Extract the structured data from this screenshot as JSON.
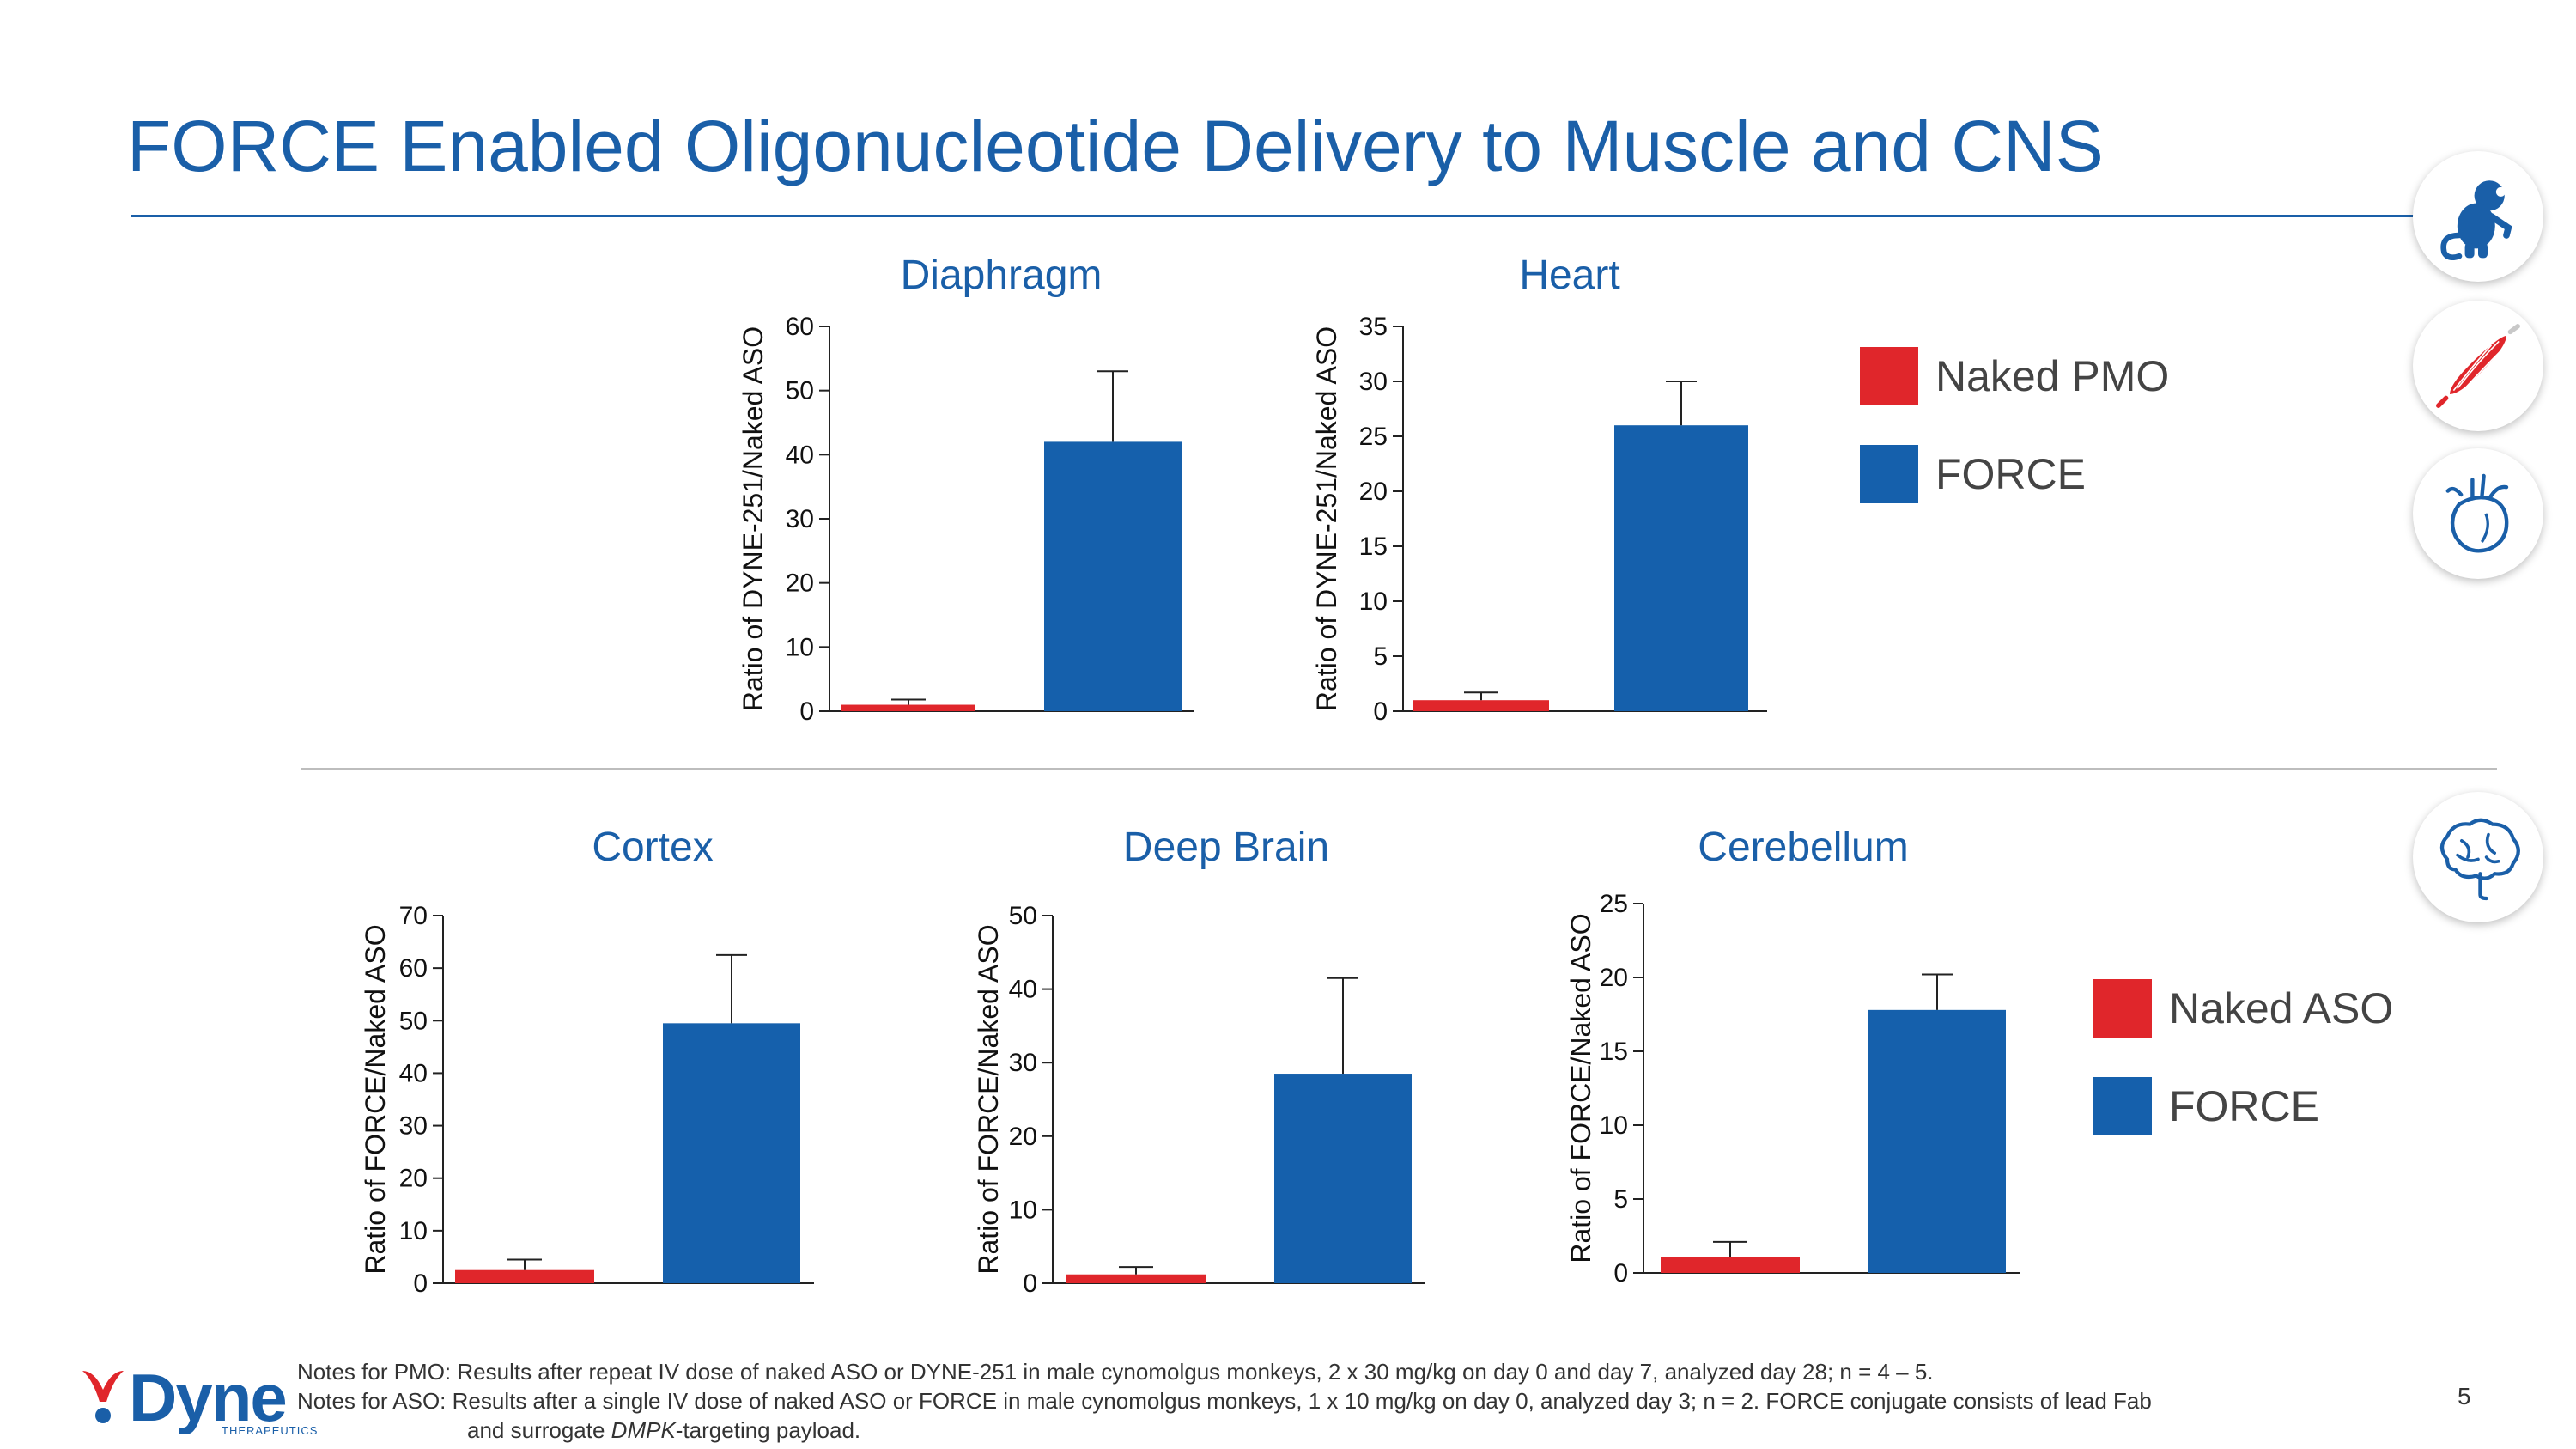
{
  "title": "FORCE Enabled Oligonucleotide Delivery to Muscle and CNS",
  "colors": {
    "brand": "#1a5fa8",
    "naked": "#e0262b",
    "force": "#1560ac"
  },
  "legend_top": {
    "naked_label": "Naked PMO",
    "force_label": "FORCE"
  },
  "legend_bottom": {
    "naked_label": "Naked ASO",
    "force_label": "FORCE"
  },
  "icons": [
    "monkey-icon",
    "muscle-icon",
    "heart-icon",
    "brain-icon"
  ],
  "chart_data": [
    {
      "type": "bar",
      "title": "Diaphragm",
      "ylabel": "Ratio of DYNE-251/Naked ASO",
      "categories": [
        "Naked PMO",
        "FORCE"
      ],
      "values": [
        1,
        42
      ],
      "errors": [
        0.8,
        11
      ],
      "ylim": [
        0,
        60
      ],
      "yticks": [
        0,
        10,
        20,
        30,
        40,
        50,
        60
      ]
    },
    {
      "type": "bar",
      "title": "Heart",
      "ylabel": "Ratio of DYNE-251/Naked ASO",
      "categories": [
        "Naked PMO",
        "FORCE"
      ],
      "values": [
        1,
        26
      ],
      "errors": [
        0.7,
        4
      ],
      "ylim": [
        0,
        35
      ],
      "yticks": [
        0,
        5,
        10,
        15,
        20,
        25,
        30,
        35
      ]
    },
    {
      "type": "bar",
      "title": "Cortex",
      "ylabel": "Ratio of FORCE/Naked ASO",
      "categories": [
        "Naked ASO",
        "FORCE"
      ],
      "values": [
        2.5,
        49.5
      ],
      "errors": [
        2,
        13
      ],
      "ylim": [
        0,
        70
      ],
      "yticks": [
        0,
        10,
        20,
        30,
        40,
        50,
        60,
        70
      ]
    },
    {
      "type": "bar",
      "title": "Deep Brain",
      "ylabel": "Ratio of FORCE/Naked ASO",
      "categories": [
        "Naked ASO",
        "FORCE"
      ],
      "values": [
        1.2,
        28.5
      ],
      "errors": [
        1,
        13
      ],
      "ylim": [
        0,
        50
      ],
      "yticks": [
        0,
        10,
        20,
        30,
        40,
        50
      ]
    },
    {
      "type": "bar",
      "title": "Cerebellum",
      "ylabel": "Ratio of FORCE/Naked ASO",
      "categories": [
        "Naked ASO",
        "FORCE"
      ],
      "values": [
        1.1,
        17.8
      ],
      "errors": [
        1,
        2.4
      ],
      "ylim": [
        0,
        25
      ],
      "yticks": [
        0,
        5,
        10,
        15,
        20,
        25
      ]
    }
  ],
  "footer": {
    "logo": "Dyne",
    "logo_sub": "THERAPEUTICS",
    "notes_pmo": "Notes for PMO: Results after repeat IV dose of naked ASO or DYNE-251 in male cynomolgus monkeys, 2 x 30 mg/kg on day 0 and day 7, analyzed day 28; n = 4 – 5.",
    "notes_aso_1": "Notes for ASO: Results after a single IV dose of naked ASO or FORCE in male cynomolgus monkeys, 1 x 10 mg/kg on day 0, analyzed day 3; n = 2. FORCE conjugate consists of lead Fab",
    "notes_aso_2a": "and surrogate ",
    "notes_aso_2b": "DMPK",
    "notes_aso_2c": "-targeting payload.",
    "page_number": "5"
  }
}
